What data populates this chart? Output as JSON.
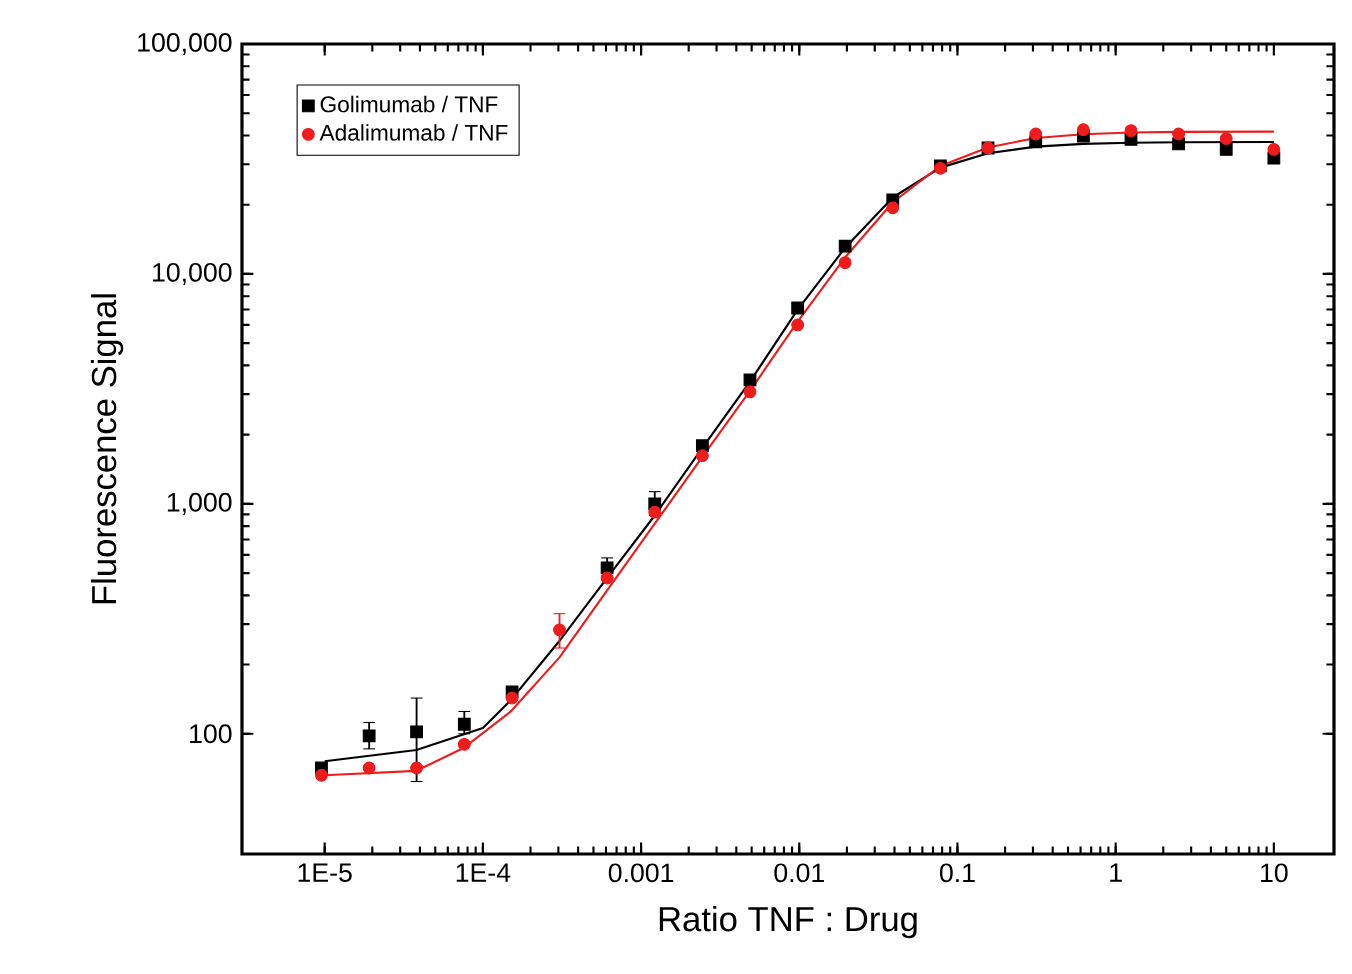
{
  "chart_data": {
    "type": "scatter",
    "xlabel": "Ratio TNF : Drug",
    "ylabel": "Fluorescence Signal",
    "log": "xy",
    "legend": "top left",
    "xlim": [
      3e-06,
      24
    ],
    "ylim": [
      30,
      100000
    ],
    "xticks": [
      {
        "value": 1e-05,
        "label": "1E-5"
      },
      {
        "value": 0.0001,
        "label": "1E-4"
      },
      {
        "value": 0.001,
        "label": "0.001"
      },
      {
        "value": 0.01,
        "label": "0.01"
      },
      {
        "value": 0.1,
        "label": "0.1"
      },
      {
        "value": 1,
        "label": "1"
      },
      {
        "value": 10,
        "label": "10"
      }
    ],
    "yticks": [
      {
        "value": 100,
        "label": "100"
      },
      {
        "value": 1000,
        "label": "1,000"
      },
      {
        "value": 10000,
        "label": "10,000"
      },
      {
        "value": 100000,
        "label": "100,000"
      }
    ],
    "x": [
      9.54e-06,
      1.91e-05,
      3.81e-05,
      7.63e-05,
      0.000153,
      0.000305,
      0.00061,
      0.00122,
      0.00244,
      0.00488,
      0.00977,
      0.0195,
      0.039,
      0.078,
      0.156,
      0.3125,
      0.625,
      1.25,
      2.5,
      5,
      10
    ],
    "series": [
      {
        "name": "Golimumab / TNF",
        "color": "#000000",
        "marker": "square",
        "values": [
          71,
          98,
          102,
          110,
          152,
          null,
          527,
          1000,
          1790,
          3460,
          7110,
          13200,
          21000,
          29500,
          35300,
          37500,
          39800,
          38500,
          36800,
          34800,
          31900
        ],
        "errors": [
          null,
          [
            86,
            112
          ],
          [
            62,
            143
          ],
          [
            100,
            125
          ],
          null,
          null,
          [
            487,
            582
          ],
          [
            890,
            1130
          ],
          null,
          null,
          null,
          null,
          null,
          null,
          null,
          null,
          null,
          null,
          null,
          null,
          null
        ]
      },
      {
        "name": "Adalimumab / TNF",
        "color": "#ee1c1c",
        "marker": "circle",
        "values": [
          66,
          71,
          71,
          90,
          143,
          283,
          476,
          920,
          1620,
          3070,
          6000,
          11200,
          19400,
          28800,
          35300,
          40600,
          42400,
          42000,
          40600,
          38800,
          34800
        ],
        "errors": [
          null,
          null,
          null,
          null,
          null,
          [
            236,
            333
          ],
          null,
          null,
          null,
          null,
          null,
          null,
          null,
          null,
          null,
          null,
          null,
          null,
          null,
          null,
          null
        ]
      },
      {
        "type": "line",
        "color": "#000000",
        "x": [
          1e-05,
          3.8e-05,
          0.0001,
          0.00015,
          0.0003,
          0.00061,
          0.00122,
          0.00244,
          0.00488,
          0.00977,
          0.0195,
          0.039,
          0.078,
          0.156,
          0.3125,
          0.625,
          1.25,
          2.5,
          10
        ],
        "values": [
          76,
          85,
          106,
          140,
          250,
          476,
          890,
          1750,
          3400,
          7000,
          13000,
          21500,
          29000,
          33500,
          35800,
          36800,
          37200,
          37400,
          37500
        ]
      },
      {
        "type": "line",
        "color": "#ee1c1c",
        "x": [
          1e-05,
          3.8e-05,
          7.6e-05,
          0.00015,
          0.000305,
          0.00061,
          0.00122,
          0.00244,
          0.00488,
          0.00977,
          0.0195,
          0.039,
          0.078,
          0.156,
          0.3125,
          0.625,
          1.25,
          2.5,
          10
        ],
        "values": [
          66,
          69,
          87,
          125,
          215,
          420,
          820,
          1600,
          3100,
          6200,
          11800,
          20500,
          29500,
          35500,
          39000,
          40500,
          41200,
          41500,
          41600
        ]
      }
    ]
  }
}
